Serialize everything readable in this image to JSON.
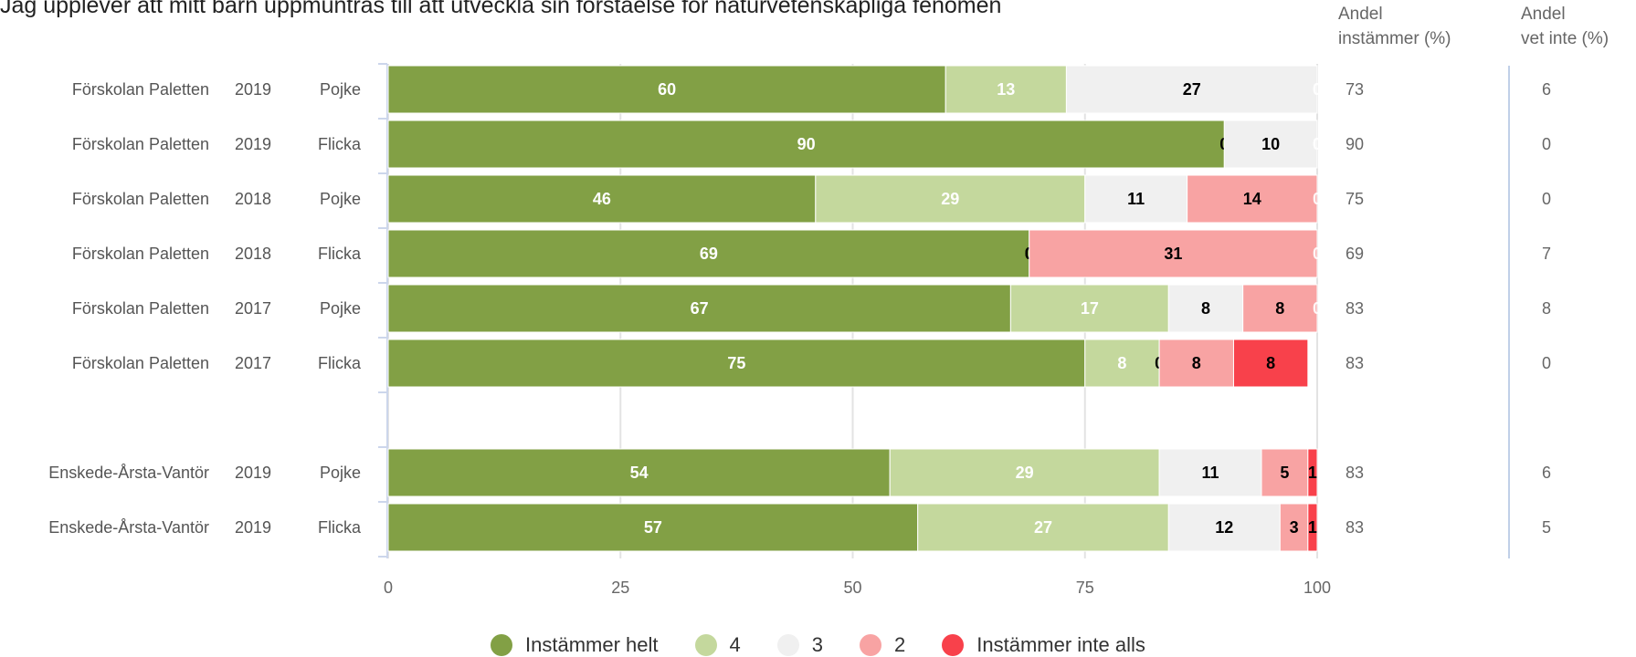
{
  "title": "Jag upplever att mitt barn uppmuntras till att utveckla sin förståelse för naturvetenskapliga fenomen",
  "columns": {
    "agree": [
      "Andel",
      "instämmer (%)"
    ],
    "dontknow": [
      "Andel",
      "vet inte (%)"
    ]
  },
  "legend": [
    {
      "label": "Instämmer helt",
      "color": "#82a045"
    },
    {
      "label": "4",
      "color": "#c4d89d"
    },
    {
      "label": "3",
      "color": "#f0f0f0"
    },
    {
      "label": "2",
      "color": "#f8a3a3"
    },
    {
      "label": "Instämmer inte alls",
      "color": "#f8414b"
    }
  ],
  "chart_data": {
    "type": "bar",
    "orientation": "horizontal",
    "stacked": true,
    "xlim": [
      0,
      100
    ],
    "xticks": [
      0,
      25,
      50,
      75,
      100
    ],
    "grid": true,
    "legend_position": "bottom",
    "series_names": [
      "Instämmer helt",
      "4",
      "3",
      "2",
      "Instämmer inte alls"
    ],
    "rows": [
      {
        "org": "Förskolan Paletten",
        "year": "2019",
        "gender": "Pojke",
        "values": [
          60,
          13,
          27,
          0,
          0
        ],
        "agree": "73",
        "dontknow": "6"
      },
      {
        "org": "Förskolan Paletten",
        "year": "2019",
        "gender": "Flicka",
        "values": [
          90,
          0,
          10,
          0,
          0
        ],
        "agree": "90",
        "dontknow": "0"
      },
      {
        "org": "Förskolan Paletten",
        "year": "2018",
        "gender": "Pojke",
        "values": [
          46,
          29,
          11,
          14,
          0
        ],
        "agree": "75",
        "dontknow": "0"
      },
      {
        "org": "Förskolan Paletten",
        "year": "2018",
        "gender": "Flicka",
        "values": [
          69,
          0,
          0,
          31,
          0
        ],
        "agree": "69",
        "dontknow": "7"
      },
      {
        "org": "Förskolan Paletten",
        "year": "2017",
        "gender": "Pojke",
        "values": [
          67,
          17,
          8,
          8,
          0
        ],
        "agree": "83",
        "dontknow": "8"
      },
      {
        "org": "Förskolan Paletten",
        "year": "2017",
        "gender": "Flicka",
        "values": [
          75,
          8,
          0,
          8,
          8
        ],
        "agree": "83",
        "dontknow": "0"
      },
      null,
      {
        "org": "Enskede-Årsta-Vantör",
        "year": "2019",
        "gender": "Pojke",
        "values": [
          54,
          29,
          11,
          5,
          1
        ],
        "agree": "83",
        "dontknow": "6"
      },
      {
        "org": "Enskede-Årsta-Vantör",
        "year": "2019",
        "gender": "Flicka",
        "values": [
          57,
          27,
          12,
          3,
          1
        ],
        "agree": "83",
        "dontknow": "5"
      }
    ]
  }
}
